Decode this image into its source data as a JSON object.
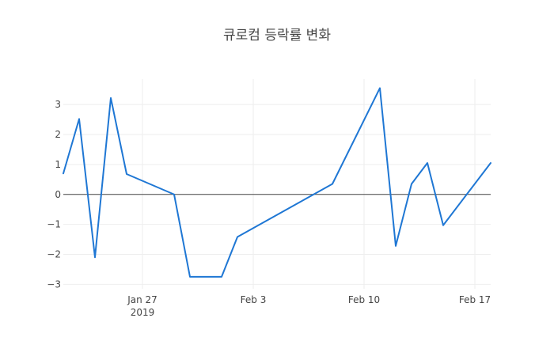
{
  "chart_data": {
    "type": "line",
    "title": "큐로컴 등락률 변화",
    "xlabel": "",
    "ylabel": "",
    "x_axis_type": "date",
    "xlim": [
      "2019-01-22",
      "2019-02-18"
    ],
    "ylim": [
      -3.15,
      3.85
    ],
    "x_ticks": [
      {
        "value": "2019-01-27",
        "label": "Jan 27",
        "sublabel": "2019"
      },
      {
        "value": "2019-02-03",
        "label": "Feb 3",
        "sublabel": ""
      },
      {
        "value": "2019-02-10",
        "label": "Feb 10",
        "sublabel": ""
      },
      {
        "value": "2019-02-17",
        "label": "Feb 17",
        "sublabel": ""
      }
    ],
    "y_ticks": [
      {
        "value": 3,
        "label": "3"
      },
      {
        "value": 2,
        "label": "2"
      },
      {
        "value": 1,
        "label": "1"
      },
      {
        "value": 0,
        "label": "0"
      },
      {
        "value": -1,
        "label": "−1"
      },
      {
        "value": -2,
        "label": "−2"
      },
      {
        "value": -3,
        "label": "−3"
      }
    ],
    "grid": true,
    "zeroline": true,
    "series": [
      {
        "color": "#1f77d4",
        "points": [
          {
            "x": "2019-01-22",
            "y": 0.7
          },
          {
            "x": "2019-01-23",
            "y": 2.52
          },
          {
            "x": "2019-01-24",
            "y": -2.1
          },
          {
            "x": "2019-01-25",
            "y": 3.22
          },
          {
            "x": "2019-01-26",
            "y": 0.68
          },
          {
            "x": "2019-01-29",
            "y": 0.0
          },
          {
            "x": "2019-01-30",
            "y": -2.75
          },
          {
            "x": "2019-01-31",
            "y": -2.75
          },
          {
            "x": "2019-02-01",
            "y": -2.75
          },
          {
            "x": "2019-02-02",
            "y": -1.42
          },
          {
            "x": "2019-02-08",
            "y": 0.35
          },
          {
            "x": "2019-02-11",
            "y": 3.55
          },
          {
            "x": "2019-02-12",
            "y": -1.72
          },
          {
            "x": "2019-02-13",
            "y": 0.35
          },
          {
            "x": "2019-02-14",
            "y": 1.05
          },
          {
            "x": "2019-02-15",
            "y": -1.03
          },
          {
            "x": "2019-02-18",
            "y": 1.05
          }
        ]
      }
    ]
  }
}
